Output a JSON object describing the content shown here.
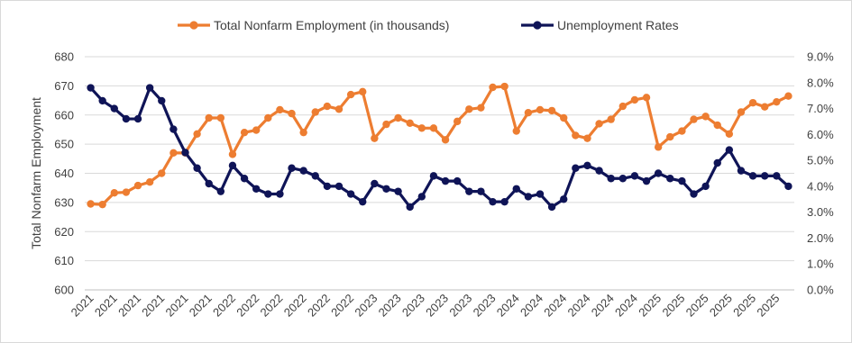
{
  "chart_data": {
    "type": "line",
    "title": "",
    "ylabel": "Total Nonfarm Employment",
    "y2label": "",
    "ylim": [
      600,
      680
    ],
    "y2lim": [
      0.0,
      9.0
    ],
    "y_ticks": [
      "600",
      "610",
      "620",
      "630",
      "640",
      "650",
      "660",
      "670",
      "680"
    ],
    "y2_ticks": [
      "0.0%",
      "1.0%",
      "2.0%",
      "3.0%",
      "4.0%",
      "5.0%",
      "6.0%",
      "7.0%",
      "8.0%",
      "9.0%"
    ],
    "categories": [
      "2021",
      "2021",
      "2021",
      "2021",
      "2021",
      "2021",
      "2021",
      "2021",
      "2021",
      "2021",
      "2021",
      "2021",
      "2022",
      "2022",
      "2022",
      "2022",
      "2022",
      "2022",
      "2022",
      "2022",
      "2022",
      "2022",
      "2022",
      "2022",
      "2023",
      "2023",
      "2023",
      "2023",
      "2023",
      "2023",
      "2023",
      "2023",
      "2023",
      "2023",
      "2023",
      "2023",
      "2024",
      "2024",
      "2024",
      "2024",
      "2024",
      "2024",
      "2024",
      "2024",
      "2024",
      "2024",
      "2024",
      "2024",
      "2025",
      "2025",
      "2025",
      "2025",
      "2025",
      "2025",
      "2025",
      "2025",
      "2025",
      "2025",
      "2025",
      "2025"
    ],
    "x_tick_labels": [
      "2021",
      "2021",
      "2021",
      "2021",
      "2021",
      "2021",
      "2022",
      "2022",
      "2022",
      "2022",
      "2022",
      "2022",
      "2023",
      "2023",
      "2023",
      "2023",
      "2023",
      "2023",
      "2024",
      "2024",
      "2024",
      "2024",
      "2024",
      "2024",
      "2025",
      "2025",
      "2025",
      "2025",
      "2025",
      "2025"
    ],
    "legend_position": "top",
    "grid": "horizontal",
    "series": [
      {
        "name": "Total Nonfarm Employment (in thousands)",
        "axis": "left",
        "color": "#ED7D31",
        "values": [
          629.5,
          629.3,
          633.3,
          633.5,
          635.8,
          637.0,
          640.0,
          647.0,
          647.0,
          653.5,
          659.0,
          659.0,
          646.5,
          654.0,
          654.8,
          659.0,
          661.8,
          660.5,
          654.0,
          661.0,
          663.0,
          662.0,
          667.0,
          668.0,
          652.0,
          656.8,
          659.0,
          657.2,
          655.5,
          655.5,
          651.5,
          657.8,
          662.0,
          662.5,
          669.5,
          669.8,
          654.5,
          660.8,
          661.8,
          661.5,
          659.0,
          653.0,
          652.0,
          657.0,
          658.5,
          663.0,
          665.2,
          666.0,
          649.0,
          652.5,
          654.5,
          658.5,
          659.5,
          656.5,
          653.5,
          661.0,
          664.2,
          662.8,
          664.5,
          666.5
        ]
      },
      {
        "name": "Unemployment Rates",
        "axis": "right",
        "color": "#0F1457",
        "values": [
          7.8,
          7.3,
          7.0,
          6.6,
          6.6,
          7.8,
          7.3,
          6.2,
          5.3,
          4.7,
          4.1,
          3.8,
          4.8,
          4.3,
          3.9,
          3.7,
          3.7,
          4.7,
          4.6,
          4.4,
          4.0,
          4.0,
          3.7,
          3.4,
          4.1,
          3.9,
          3.8,
          3.2,
          3.6,
          4.4,
          4.2,
          4.2,
          3.8,
          3.8,
          3.4,
          3.4,
          3.9,
          3.6,
          3.7,
          3.2,
          3.5,
          4.7,
          4.8,
          4.6,
          4.3,
          4.3,
          4.4,
          4.2,
          4.5,
          4.3,
          4.2,
          3.7,
          4.0,
          4.9,
          5.4,
          4.6,
          4.4,
          4.4,
          4.4,
          4.0
        ]
      }
    ]
  }
}
